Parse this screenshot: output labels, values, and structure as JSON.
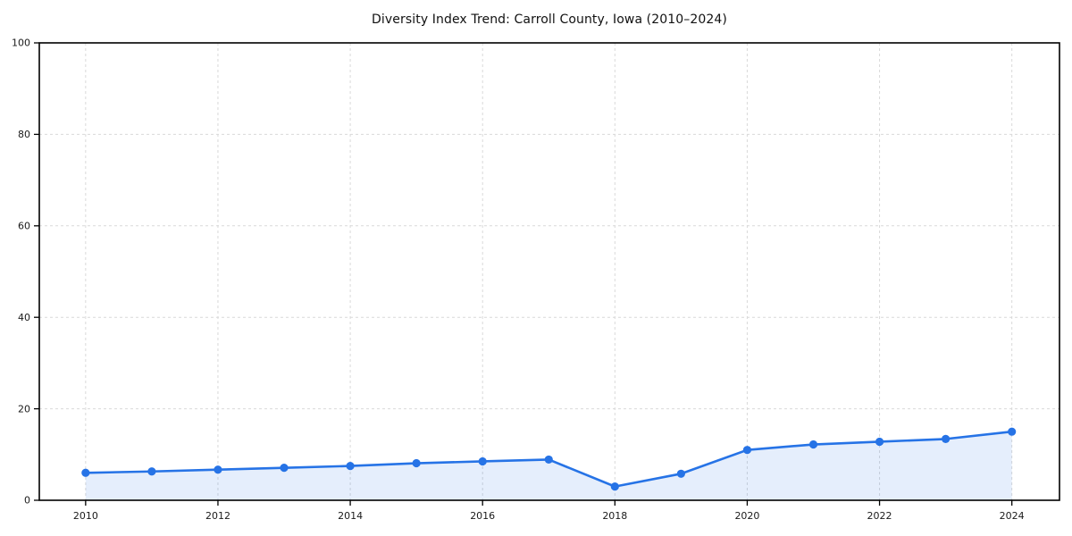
{
  "chart_data": {
    "type": "line",
    "title": "Diversity Index Trend: Carroll County, Iowa (2010–2024)",
    "series_name": "Diversity Index",
    "x": [
      2010,
      2011,
      2012,
      2013,
      2014,
      2015,
      2016,
      2017,
      2018,
      2019,
      2020,
      2021,
      2022,
      2023,
      2024
    ],
    "values": [
      6.0,
      6.3,
      6.7,
      7.1,
      7.5,
      8.1,
      8.5,
      8.9,
      3.0,
      5.8,
      11.0,
      12.2,
      12.8,
      13.4,
      15.0
    ],
    "xlabel": "",
    "ylabel": "",
    "xlim": [
      2009.3,
      2024.72
    ],
    "ylim": [
      0,
      100
    ],
    "x_ticks": [
      2010,
      2012,
      2014,
      2016,
      2018,
      2020,
      2022,
      2024
    ],
    "y_ticks": [
      0,
      20,
      40,
      60,
      80,
      100
    ],
    "grid": true,
    "grid_style": "dashed",
    "legend": false,
    "area_fill": true,
    "marker": "circle",
    "colors": {
      "line": "#2673e6",
      "marker": "#2673e6",
      "area": "rgba(38, 115, 230, 0.12)",
      "grid": "#d9d9d9",
      "border": "#000000",
      "text": "#1a1a1a",
      "background": "#ffffff"
    }
  }
}
